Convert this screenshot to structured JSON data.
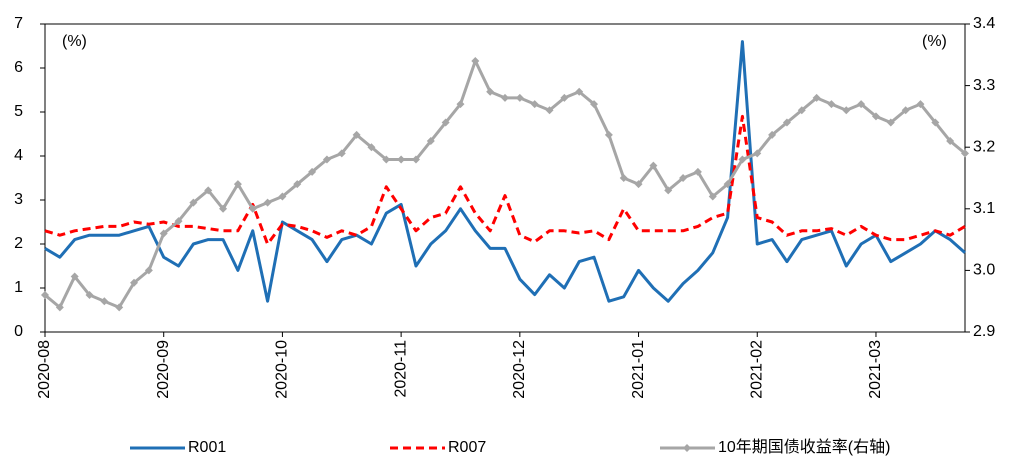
{
  "chart_data": {
    "type": "line",
    "y_unit": "(%)",
    "y2_unit": "(%)",
    "categories": [
      "2020-08",
      null,
      null,
      null,
      null,
      null,
      null,
      null,
      "2020-09",
      null,
      null,
      null,
      null,
      null,
      null,
      null,
      "2020-10",
      null,
      null,
      null,
      null,
      null,
      null,
      null,
      "2020-11",
      null,
      null,
      null,
      null,
      null,
      null,
      null,
      "2020-12",
      null,
      null,
      null,
      null,
      null,
      null,
      null,
      "2021-01",
      null,
      null,
      null,
      null,
      null,
      null,
      null,
      "2021-02",
      null,
      null,
      null,
      null,
      null,
      null,
      null,
      "2021-03",
      null,
      null,
      null,
      null,
      null,
      null
    ],
    "series": [
      {
        "name": "R001",
        "color": "#1f6fb5",
        "dash": "solid",
        "values": [
          1.9,
          1.7,
          2.1,
          2.2,
          2.2,
          2.2,
          2.3,
          2.4,
          1.7,
          1.5,
          2.0,
          2.1,
          2.1,
          1.4,
          2.3,
          0.7,
          2.5,
          2.3,
          2.1,
          1.6,
          2.1,
          2.2,
          2.0,
          2.7,
          2.9,
          1.5,
          2.0,
          2.3,
          2.8,
          2.3,
          1.9,
          1.9,
          1.2,
          0.85,
          1.3,
          1.0,
          1.6,
          1.7,
          0.7,
          0.8,
          1.4,
          1.0,
          0.7,
          1.1,
          1.4,
          1.8,
          2.6,
          6.6,
          2.0,
          2.1,
          1.6,
          2.1,
          2.2,
          2.3,
          1.5,
          2.0,
          2.2,
          1.6,
          1.8,
          2.0,
          2.3,
          2.1,
          1.8
        ]
      },
      {
        "name": "R007",
        "color": "#ff0000",
        "dash": "dashed",
        "values": [
          2.3,
          2.2,
          2.3,
          2.35,
          2.4,
          2.4,
          2.5,
          2.45,
          2.5,
          2.4,
          2.4,
          2.35,
          2.3,
          2.3,
          2.9,
          2.0,
          2.45,
          2.4,
          2.3,
          2.15,
          2.3,
          2.2,
          2.4,
          3.3,
          2.8,
          2.3,
          2.6,
          2.7,
          3.3,
          2.7,
          2.3,
          3.1,
          2.2,
          2.05,
          2.3,
          2.3,
          2.25,
          2.3,
          2.1,
          2.8,
          2.3,
          2.3,
          2.3,
          2.3,
          2.4,
          2.6,
          2.7,
          4.9,
          2.6,
          2.5,
          2.2,
          2.3,
          2.3,
          2.35,
          2.2,
          2.4,
          2.2,
          2.1,
          2.1,
          2.2,
          2.3,
          2.2,
          2.4
        ]
      },
      {
        "name": "10年期国债收益率(右轴)",
        "color": "#a6a6a6",
        "dash": "solid",
        "marker": "diamond",
        "axis": "y2",
        "values": [
          2.96,
          2.94,
          2.99,
          2.96,
          2.95,
          2.94,
          2.98,
          3.0,
          3.06,
          3.08,
          3.11,
          3.13,
          3.1,
          3.14,
          3.1,
          3.11,
          3.12,
          3.14,
          3.16,
          3.18,
          3.19,
          3.22,
          3.2,
          3.18,
          3.18,
          3.18,
          3.21,
          3.24,
          3.27,
          3.34,
          3.29,
          3.28,
          3.28,
          3.27,
          3.26,
          3.28,
          3.29,
          3.27,
          3.22,
          3.15,
          3.14,
          3.17,
          3.13,
          3.15,
          3.16,
          3.12,
          3.14,
          3.18,
          3.19,
          3.22,
          3.24,
          3.26,
          3.28,
          3.27,
          3.26,
          3.27,
          3.25,
          3.24,
          3.26,
          3.27,
          3.24,
          3.21,
          3.19
        ]
      }
    ],
    "ylim": [
      0,
      7
    ],
    "yticks": [
      0,
      1,
      2,
      3,
      4,
      5,
      6,
      7
    ],
    "y2lim": [
      2.9,
      3.4
    ],
    "y2ticks": [
      2.9,
      {
        "value": 3,
        "label": "3.0"
      },
      3.1,
      3.2,
      3.3,
      3.4
    ],
    "grid": false,
    "legend": "bottom"
  }
}
